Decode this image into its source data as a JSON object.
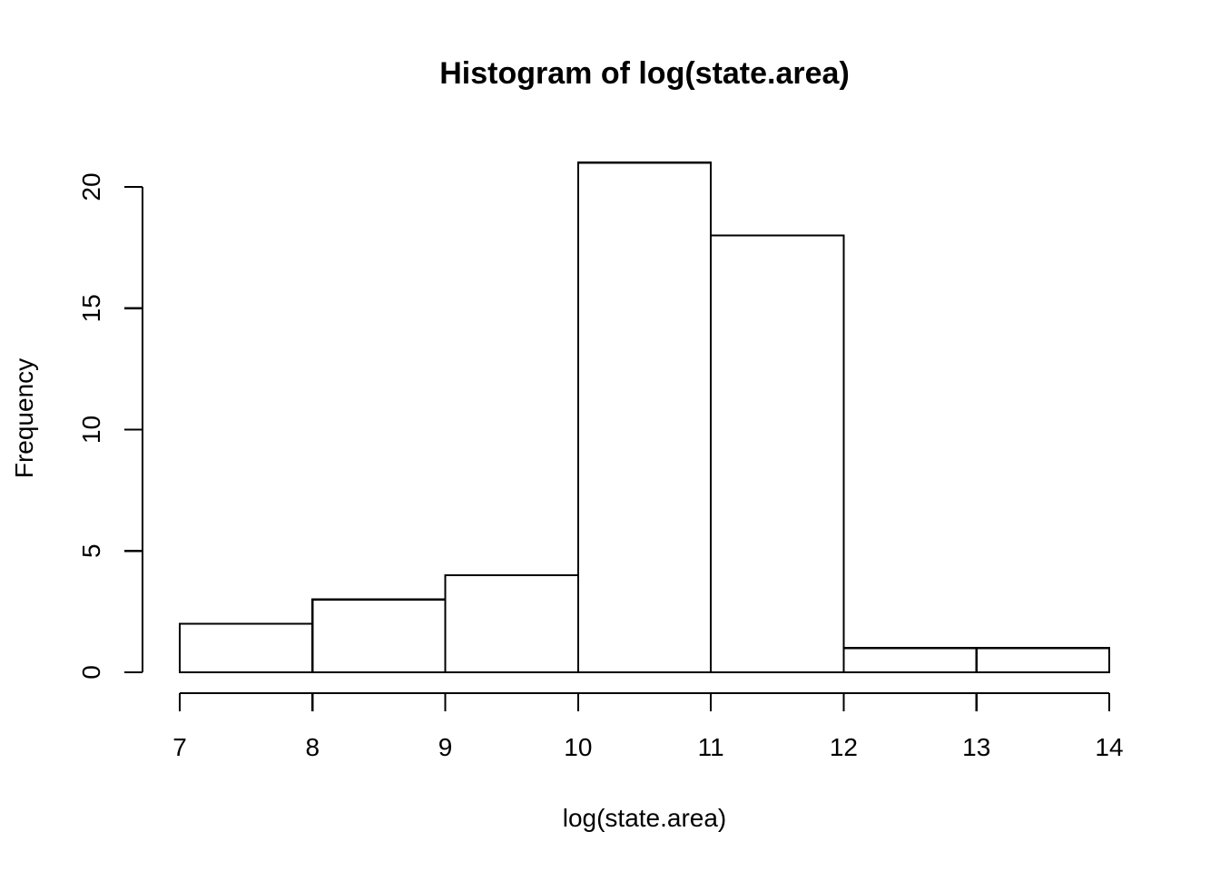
{
  "chart_data": {
    "type": "bar",
    "title": "Histogram of log(state.area)",
    "xlabel": "log(state.area)",
    "ylabel": "Frequency",
    "bins": [
      {
        "start": 7,
        "end": 8,
        "count": 2
      },
      {
        "start": 8,
        "end": 9,
        "count": 3
      },
      {
        "start": 9,
        "end": 10,
        "count": 4
      },
      {
        "start": 10,
        "end": 11,
        "count": 21
      },
      {
        "start": 11,
        "end": 12,
        "count": 18
      },
      {
        "start": 12,
        "end": 13,
        "count": 1
      },
      {
        "start": 13,
        "end": 14,
        "count": 1
      }
    ],
    "xlim": [
      7,
      14
    ],
    "ylim": [
      0,
      21
    ],
    "x_ticks": [
      "7",
      "8",
      "9",
      "10",
      "11",
      "12",
      "13",
      "14"
    ],
    "y_ticks": [
      "0",
      "5",
      "10",
      "15",
      "20"
    ],
    "grid": false,
    "legend": "none",
    "colors": {
      "bar_fill": "#ffffff",
      "bar_stroke": "#000000",
      "text": "#000000"
    }
  }
}
